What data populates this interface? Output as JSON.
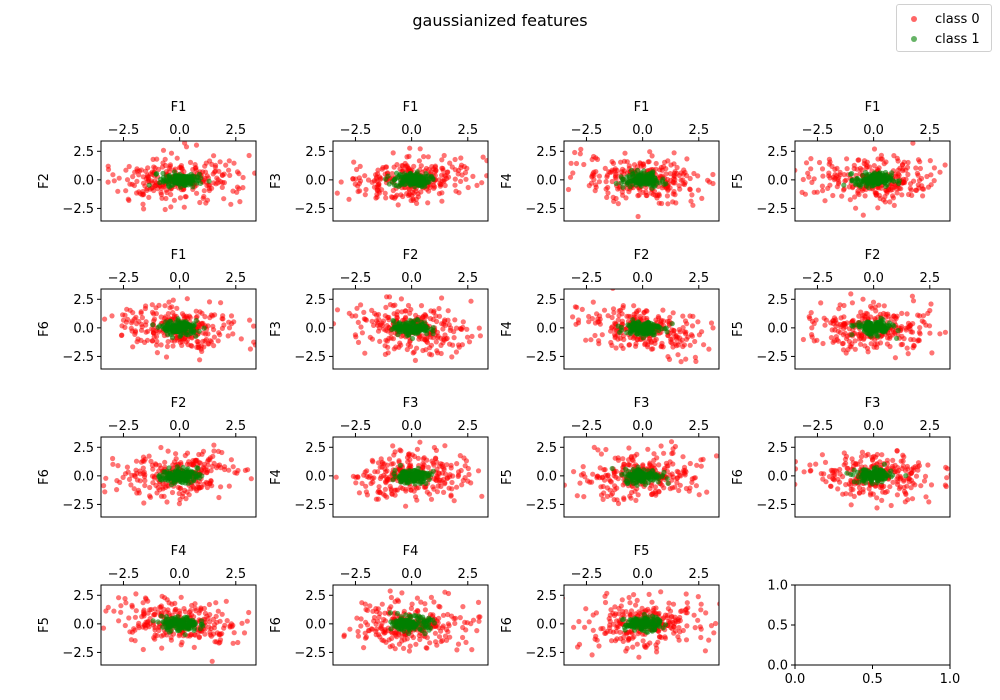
{
  "title": "gaussianized features",
  "legend": {
    "items": [
      {
        "label": "class 0",
        "color": "#ff0000"
      },
      {
        "label": "class 1",
        "color": "#008000"
      }
    ]
  },
  "chart_data": {
    "type": "scatter",
    "title": "gaussianized features",
    "grid": false,
    "legend_position": "top-right",
    "x_ticks": [
      -2.5,
      0.0,
      2.5
    ],
    "y_ticks": [
      -2.5,
      0.0,
      2.5
    ],
    "x_tick_labels": [
      "−2.5",
      "0.0",
      "2.5"
    ],
    "y_tick_labels": [
      "−2.5",
      "0.0",
      "2.5"
    ],
    "xlim": [
      -3.5,
      3.4
    ],
    "ylim": [
      -3.6,
      3.4
    ],
    "series": [
      {
        "name": "class 0",
        "color": "#ff0000",
        "alpha": 0.55,
        "approx_sd": 1.05
      },
      {
        "name": "class 1",
        "color": "#008000",
        "alpha": 0.6,
        "approx_sd": 0.32
      }
    ],
    "subplots": [
      {
        "xlabel": "F1",
        "ylabel": "F2",
        "row": 0,
        "col": 0
      },
      {
        "xlabel": "F1",
        "ylabel": "F3",
        "row": 0,
        "col": 1
      },
      {
        "xlabel": "F1",
        "ylabel": "F4",
        "row": 0,
        "col": 2
      },
      {
        "xlabel": "F1",
        "ylabel": "F5",
        "row": 0,
        "col": 3
      },
      {
        "xlabel": "F1",
        "ylabel": "F6",
        "row": 1,
        "col": 0
      },
      {
        "xlabel": "F2",
        "ylabel": "F3",
        "row": 1,
        "col": 1
      },
      {
        "xlabel": "F2",
        "ylabel": "F4",
        "row": 1,
        "col": 2
      },
      {
        "xlabel": "F2",
        "ylabel": "F5",
        "row": 1,
        "col": 3
      },
      {
        "xlabel": "F2",
        "ylabel": "F6",
        "row": 2,
        "col": 0
      },
      {
        "xlabel": "F3",
        "ylabel": "F4",
        "row": 2,
        "col": 1
      },
      {
        "xlabel": "F3",
        "ylabel": "F5",
        "row": 2,
        "col": 2
      },
      {
        "xlabel": "F3",
        "ylabel": "F6",
        "row": 2,
        "col": 3
      },
      {
        "xlabel": "F4",
        "ylabel": "F5",
        "row": 3,
        "col": 0
      },
      {
        "xlabel": "F4",
        "ylabel": "F6",
        "row": 3,
        "col": 1
      },
      {
        "xlabel": "F5",
        "ylabel": "F6",
        "row": 3,
        "col": 2
      }
    ],
    "empty_axes": {
      "row": 3,
      "col": 3,
      "xlim": [
        0.0,
        1.0
      ],
      "ylim": [
        0.0,
        1.0
      ],
      "x_ticks": [
        "0.0",
        "0.5",
        "1.0"
      ],
      "y_ticks": [
        "0.0",
        "0.5",
        "1.0"
      ]
    }
  }
}
